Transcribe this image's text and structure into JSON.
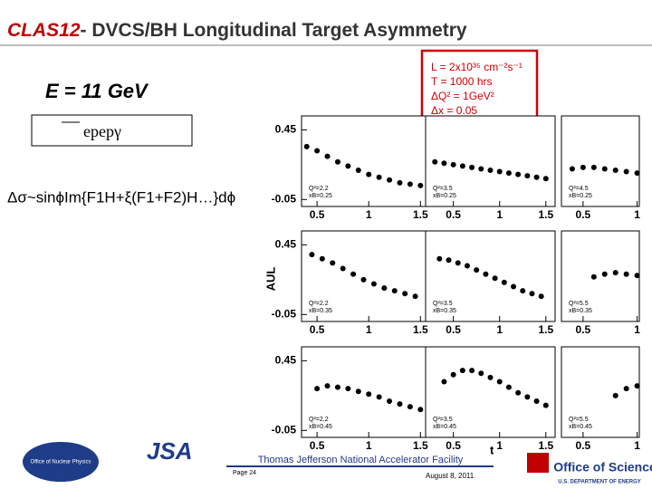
{
  "title_red": "CLAS12",
  "title_rest": "- DVCS/BH Longitudinal Target Asymmetry",
  "energy": "E = 11 GeV",
  "reaction": "epepγ",
  "formula": "Δσ~sinϕIm{F1H+ξ(F1+F2)H…}dϕ",
  "conditions": [
    "L = 2x10³⁵ cm⁻²s⁻¹",
    "T = 1000 hrs",
    "ΔQ² = 1GeV²",
    "Δx = 0.05"
  ],
  "chart_data": {
    "type": "scatter",
    "ylabel": "AUL",
    "xlabel": "t",
    "ylim": [
      -0.1,
      0.55
    ],
    "color": "#000000",
    "panels": [
      {
        "q2": "Q²=2.2",
        "xb": "xB=0.25",
        "xlim": [
          0.35,
          1.55
        ],
        "yticks": [
          0.45,
          -0.05
        ],
        "xticks": [
          0.5,
          1,
          1.5
        ],
        "t": [
          0.4,
          0.5,
          0.6,
          0.7,
          0.8,
          0.9,
          1.0,
          1.1,
          1.2,
          1.3,
          1.4,
          1.5
        ],
        "values": [
          0.33,
          0.3,
          0.26,
          0.22,
          0.19,
          0.16,
          0.13,
          0.11,
          0.09,
          0.07,
          0.06,
          0.05
        ]
      },
      {
        "q2": "Q²=3.5",
        "xb": "xB=0.25",
        "xlim": [
          0.2,
          1.6
        ],
        "xticks": [
          0.5,
          1,
          1.5
        ],
        "t": [
          0.3,
          0.4,
          0.5,
          0.6,
          0.7,
          0.8,
          0.9,
          1.0,
          1.1,
          1.2,
          1.3,
          1.4,
          1.5
        ],
        "values": [
          0.22,
          0.21,
          0.2,
          0.19,
          0.18,
          0.17,
          0.16,
          0.15,
          0.14,
          0.13,
          0.12,
          0.11,
          0.1
        ]
      },
      {
        "q2": "Q²=4.5",
        "xb": "xB=0.25",
        "xlim": [
          0.3,
          1.02
        ],
        "xticks": [
          0.5,
          1
        ],
        "t": [
          0.4,
          0.5,
          0.6,
          0.7,
          0.8,
          0.9,
          1.0
        ],
        "values": [
          0.17,
          0.18,
          0.18,
          0.17,
          0.16,
          0.15,
          0.14
        ]
      },
      {
        "q2": "Q²=2.2",
        "xb": "xB=0.35",
        "xlim": [
          0.35,
          1.55
        ],
        "yticks": [
          0.45,
          -0.05
        ],
        "xticks": [
          0.5,
          1,
          1.5
        ],
        "t": [
          0.45,
          0.55,
          0.65,
          0.75,
          0.85,
          0.95,
          1.05,
          1.15,
          1.25,
          1.35,
          1.45
        ],
        "values": [
          0.38,
          0.35,
          0.32,
          0.28,
          0.24,
          0.2,
          0.17,
          0.14,
          0.12,
          0.1,
          0.08
        ]
      },
      {
        "q2": "Q²=3.5",
        "xb": "xB=0.35",
        "xlim": [
          0.2,
          1.6
        ],
        "xticks": [
          0.5,
          1,
          1.5
        ],
        "t": [
          0.35,
          0.45,
          0.55,
          0.65,
          0.75,
          0.85,
          0.95,
          1.05,
          1.15,
          1.25,
          1.35,
          1.45
        ],
        "values": [
          0.35,
          0.34,
          0.32,
          0.3,
          0.27,
          0.24,
          0.21,
          0.18,
          0.15,
          0.12,
          0.1,
          0.08
        ]
      },
      {
        "q2": "Q²=5.5",
        "xb": "xB=0.35",
        "xlim": [
          0.3,
          1.02
        ],
        "xticks": [
          0.5,
          1
        ],
        "t": [
          0.6,
          0.7,
          0.8,
          0.9,
          1.0
        ],
        "values": [
          0.22,
          0.24,
          0.25,
          0.24,
          0.23
        ]
      },
      {
        "q2": "Q²=2.2",
        "xb": "xB=0.45",
        "xlim": [
          0.35,
          1.55
        ],
        "yticks": [
          0.45,
          -0.05
        ],
        "xticks": [
          0.5,
          1,
          1.5
        ],
        "t": [
          0.5,
          0.6,
          0.7,
          0.8,
          0.9,
          1.0,
          1.1,
          1.2,
          1.3,
          1.4,
          1.5
        ],
        "values": [
          0.25,
          0.27,
          0.26,
          0.25,
          0.23,
          0.21,
          0.19,
          0.16,
          0.14,
          0.12,
          0.1
        ]
      },
      {
        "q2": "Q²=3.5",
        "xb": "xB=0.45",
        "xlim": [
          0.2,
          1.6
        ],
        "xticks": [
          0.5,
          1,
          1.5
        ],
        "t": [
          0.4,
          0.5,
          0.6,
          0.7,
          0.8,
          0.9,
          1.0,
          1.1,
          1.2,
          1.3,
          1.4,
          1.5
        ],
        "values": [
          0.3,
          0.35,
          0.38,
          0.38,
          0.36,
          0.33,
          0.3,
          0.26,
          0.22,
          0.19,
          0.16,
          0.13
        ]
      },
      {
        "q2": "Q²=5.5",
        "xb": "xB=0.45",
        "xlim": [
          0.3,
          1.02
        ],
        "xticks": [
          0.5,
          1
        ],
        "t": [
          0.8,
          0.9,
          1.0
        ],
        "values": [
          0.2,
          0.25,
          0.27
        ]
      }
    ]
  },
  "footer": {
    "lab": "Thomas Jefferson National Accelerator Facility",
    "page": "Page 24",
    "date": "August 8, 2011",
    "jsa": "JSA",
    "office": "Office of Science",
    "doe": "U.S. DEPARTMENT OF ENERGY",
    "np": "Office of Nuclear Physics"
  }
}
